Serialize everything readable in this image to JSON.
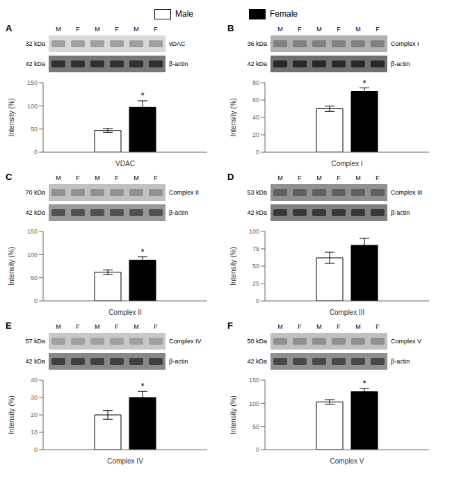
{
  "chart_data": [
    {
      "type": "bar",
      "title": "A",
      "categories": [
        null
      ],
      "series": [
        {
          "name": "Male",
          "color": "#ffffff",
          "values": [
            47
          ],
          "errors": [
            4
          ]
        },
        {
          "name": "Female",
          "color": "#000000",
          "values": [
            97
          ],
          "errors": [
            14
          ]
        }
      ],
      "xlabel": "VDAC",
      "ylabel": "Intensity (%)",
      "ylim": [
        0,
        150
      ],
      "yticks": [
        0,
        50,
        100,
        150
      ],
      "tick_labels": "y",
      "legend": "top",
      "grid": false,
      "annotations": [
        {
          "kind": "lane",
          "text": "M"
        },
        {
          "kind": "lane",
          "text": "F"
        },
        {
          "kind": "lane",
          "text": "M"
        },
        {
          "kind": "lane",
          "text": "F"
        },
        {
          "kind": "lane",
          "text": "M"
        },
        {
          "kind": "lane",
          "text": "F"
        },
        {
          "kind": "blot_row",
          "text": "vDAC",
          "kda": "32 kDa",
          "color": "#d8d8d8",
          "band_color": "#a0a0a0"
        },
        {
          "kind": "blot_row",
          "text": "β-actin",
          "kda": "42 kDa",
          "color": "#787878",
          "band_color": "#303030"
        },
        {
          "kind": "significance",
          "text": "*",
          "series": "Female"
        }
      ]
    },
    {
      "type": "bar",
      "title": "B",
      "categories": [
        null
      ],
      "series": [
        {
          "name": "Male",
          "color": "#ffffff",
          "values": [
            50
          ],
          "errors": [
            3
          ]
        },
        {
          "name": "Female",
          "color": "#000000",
          "values": [
            70
          ],
          "errors": [
            4
          ]
        }
      ],
      "xlabel": "Complex I",
      "ylabel": "Intensity (%)",
      "ylim": [
        0,
        80
      ],
      "yticks": [
        0,
        20,
        40,
        60,
        80
      ],
      "tick_labels": "y",
      "legend": "top",
      "grid": false,
      "annotations": [
        {
          "kind": "lane",
          "text": "M"
        },
        {
          "kind": "lane",
          "text": "F"
        },
        {
          "kind": "lane",
          "text": "M"
        },
        {
          "kind": "lane",
          "text": "F"
        },
        {
          "kind": "lane",
          "text": "M"
        },
        {
          "kind": "lane",
          "text": "F"
        },
        {
          "kind": "blot_row",
          "text": "Complex I",
          "kda": "36 kDa",
          "color": "#b0b0b0",
          "band_color": "#808080"
        },
        {
          "kind": "blot_row",
          "text": "β-actin",
          "kda": "42 kDa",
          "color": "#707070",
          "band_color": "#282828"
        },
        {
          "kind": "significance",
          "text": "*",
          "series": "Female"
        }
      ]
    },
    {
      "type": "bar",
      "title": "C",
      "categories": [
        null
      ],
      "series": [
        {
          "name": "Male",
          "color": "#ffffff",
          "values": [
            62
          ],
          "errors": [
            5
          ]
        },
        {
          "name": "Female",
          "color": "#000000",
          "values": [
            88
          ],
          "errors": [
            7
          ]
        }
      ],
      "xlabel": "Complex II",
      "ylabel": "Intensity (%)",
      "ylim": [
        0,
        150
      ],
      "yticks": [
        0,
        50,
        100,
        150
      ],
      "tick_labels": "y",
      "legend": "top",
      "grid": false,
      "annotations": [
        {
          "kind": "lane",
          "text": "M"
        },
        {
          "kind": "lane",
          "text": "F"
        },
        {
          "kind": "lane",
          "text": "M"
        },
        {
          "kind": "lane",
          "text": "F"
        },
        {
          "kind": "lane",
          "text": "M"
        },
        {
          "kind": "lane",
          "text": "F"
        },
        {
          "kind": "blot_row",
          "text": "Complex II",
          "kda": "70 kDa",
          "color": "#c0c0c0",
          "band_color": "#909090"
        },
        {
          "kind": "blot_row",
          "text": "β-actin",
          "kda": "42 kDa",
          "color": "#989898",
          "band_color": "#505050"
        },
        {
          "kind": "significance",
          "text": "*",
          "series": "Female"
        }
      ]
    },
    {
      "type": "bar",
      "title": "D",
      "categories": [
        null
      ],
      "series": [
        {
          "name": "Male",
          "color": "#ffffff",
          "values": [
            62
          ],
          "errors": [
            8
          ]
        },
        {
          "name": "Female",
          "color": "#000000",
          "values": [
            80
          ],
          "errors": [
            10
          ]
        }
      ],
      "xlabel": "Complex III",
      "ylabel": "Intensity (%)",
      "ylim": [
        0,
        100
      ],
      "yticks": [
        0,
        25,
        50,
        75,
        100
      ],
      "tick_labels": "y",
      "legend": "top",
      "grid": false,
      "annotations": [
        {
          "kind": "lane",
          "text": "M"
        },
        {
          "kind": "lane",
          "text": "F"
        },
        {
          "kind": "lane",
          "text": "M"
        },
        {
          "kind": "lane",
          "text": "F"
        },
        {
          "kind": "lane",
          "text": "M"
        },
        {
          "kind": "lane",
          "text": "F"
        },
        {
          "kind": "blot_row",
          "text": "Complex III",
          "kda": "53 kDa",
          "color": "#909090",
          "band_color": "#606060"
        },
        {
          "kind": "blot_row",
          "text": "β-actin",
          "kda": "42 kDa",
          "color": "#808080",
          "band_color": "#383838"
        }
      ]
    },
    {
      "type": "bar",
      "title": "E",
      "categories": [
        null
      ],
      "series": [
        {
          "name": "Male",
          "color": "#ffffff",
          "values": [
            20
          ],
          "errors": [
            2.5
          ]
        },
        {
          "name": "Female",
          "color": "#000000",
          "values": [
            30
          ],
          "errors": [
            3.5
          ]
        }
      ],
      "xlabel": "Complex IV",
      "ylabel": "Intensity (%)",
      "ylim": [
        0,
        40
      ],
      "yticks": [
        0,
        10,
        20,
        30,
        40
      ],
      "tick_labels": "y",
      "legend": "top",
      "grid": false,
      "annotations": [
        {
          "kind": "lane",
          "text": "M"
        },
        {
          "kind": "lane",
          "text": "F"
        },
        {
          "kind": "lane",
          "text": "M"
        },
        {
          "kind": "lane",
          "text": "F"
        },
        {
          "kind": "lane",
          "text": "M"
        },
        {
          "kind": "lane",
          "text": "F"
        },
        {
          "kind": "blot_row",
          "text": "Complex IV",
          "kda": "57 kDa",
          "color": "#c8c8c8",
          "band_color": "#a0a0a0"
        },
        {
          "kind": "blot_row",
          "text": "β-actin",
          "kda": "42 kDa",
          "color": "#888888",
          "band_color": "#404040"
        },
        {
          "kind": "significance",
          "text": "*",
          "series": "Female"
        }
      ]
    },
    {
      "type": "bar",
      "title": "F",
      "categories": [
        null
      ],
      "series": [
        {
          "name": "Male",
          "color": "#ffffff",
          "values": [
            103
          ],
          "errors": [
            5
          ]
        },
        {
          "name": "Female",
          "color": "#000000",
          "values": [
            125
          ],
          "errors": [
            7
          ]
        }
      ],
      "xlabel": "Complex V",
      "ylabel": "Intensity (%)",
      "ylim": [
        0,
        150
      ],
      "yticks": [
        0,
        50,
        100,
        150
      ],
      "tick_labels": "y",
      "legend": "top",
      "grid": false,
      "annotations": [
        {
          "kind": "lane",
          "text": "M"
        },
        {
          "kind": "lane",
          "text": "F"
        },
        {
          "kind": "lane",
          "text": "M"
        },
        {
          "kind": "lane",
          "text": "F"
        },
        {
          "kind": "lane",
          "text": "M"
        },
        {
          "kind": "lane",
          "text": "F"
        },
        {
          "kind": "blot_row",
          "text": "Complex V",
          "kda": "50 kDa",
          "color": "#c0c0c0",
          "band_color": "#909090"
        },
        {
          "kind": "blot_row",
          "text": "β-actin",
          "kda": "42 kDa",
          "color": "#909090",
          "band_color": "#484848"
        },
        {
          "kind": "significance",
          "text": "*",
          "series": "Female"
        }
      ]
    }
  ]
}
